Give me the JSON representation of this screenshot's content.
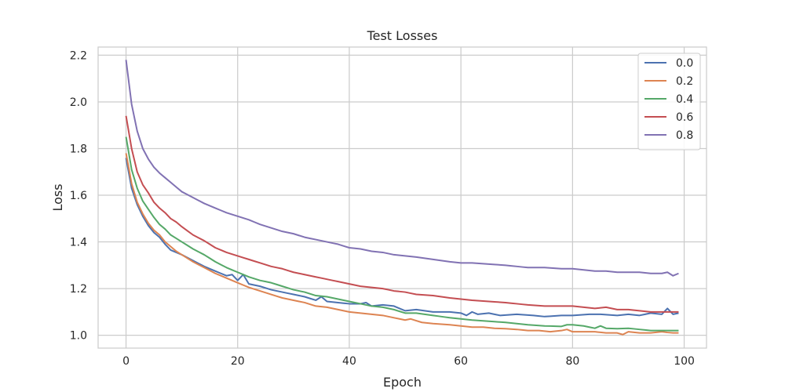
{
  "chart_data": {
    "type": "line",
    "title": "Test Losses",
    "xlabel": "Epoch",
    "ylabel": "Loss",
    "xlim": [
      -5,
      104
    ],
    "ylim": [
      0.945,
      2.235
    ],
    "xticks": [
      0,
      20,
      40,
      60,
      80,
      100
    ],
    "yticks": [
      1.0,
      1.2,
      1.4,
      1.6,
      1.8,
      2.0,
      2.2
    ],
    "grid": true,
    "legend_position": "top-right",
    "series": [
      {
        "name": "0.0",
        "color": "#4c72b0",
        "keypoints": [
          [
            0,
            1.76
          ],
          [
            1,
            1.63
          ],
          [
            2,
            1.56
          ],
          [
            3,
            1.51
          ],
          [
            4,
            1.47
          ],
          [
            5,
            1.44
          ],
          [
            6,
            1.42
          ],
          [
            7,
            1.39
          ],
          [
            8,
            1.365
          ],
          [
            9,
            1.355
          ],
          [
            10,
            1.345
          ],
          [
            12,
            1.32
          ],
          [
            14,
            1.295
          ],
          [
            16,
            1.275
          ],
          [
            18,
            1.255
          ],
          [
            19,
            1.26
          ],
          [
            20,
            1.235
          ],
          [
            21,
            1.26
          ],
          [
            22,
            1.22
          ],
          [
            24,
            1.21
          ],
          [
            26,
            1.195
          ],
          [
            28,
            1.185
          ],
          [
            30,
            1.175
          ],
          [
            32,
            1.165
          ],
          [
            34,
            1.15
          ],
          [
            35,
            1.165
          ],
          [
            36,
            1.145
          ],
          [
            38,
            1.14
          ],
          [
            40,
            1.135
          ],
          [
            42,
            1.135
          ],
          [
            43,
            1.14
          ],
          [
            44,
            1.125
          ],
          [
            46,
            1.13
          ],
          [
            48,
            1.125
          ],
          [
            50,
            1.105
          ],
          [
            52,
            1.11
          ],
          [
            55,
            1.1
          ],
          [
            58,
            1.1
          ],
          [
            60,
            1.095
          ],
          [
            61,
            1.085
          ],
          [
            62,
            1.1
          ],
          [
            63,
            1.09
          ],
          [
            65,
            1.095
          ],
          [
            67,
            1.085
          ],
          [
            70,
            1.09
          ],
          [
            73,
            1.085
          ],
          [
            75,
            1.08
          ],
          [
            78,
            1.085
          ],
          [
            80,
            1.085
          ],
          [
            83,
            1.09
          ],
          [
            85,
            1.09
          ],
          [
            88,
            1.085
          ],
          [
            90,
            1.09
          ],
          [
            92,
            1.085
          ],
          [
            94,
            1.095
          ],
          [
            96,
            1.09
          ],
          [
            97,
            1.115
          ],
          [
            98,
            1.09
          ],
          [
            99,
            1.095
          ]
        ]
      },
      {
        "name": "0.2",
        "color": "#dd8452",
        "keypoints": [
          [
            0,
            1.78
          ],
          [
            1,
            1.65
          ],
          [
            2,
            1.57
          ],
          [
            3,
            1.52
          ],
          [
            4,
            1.48
          ],
          [
            5,
            1.45
          ],
          [
            6,
            1.43
          ],
          [
            7,
            1.4
          ],
          [
            8,
            1.38
          ],
          [
            9,
            1.36
          ],
          [
            10,
            1.345
          ],
          [
            12,
            1.315
          ],
          [
            14,
            1.29
          ],
          [
            16,
            1.265
          ],
          [
            18,
            1.245
          ],
          [
            20,
            1.225
          ],
          [
            22,
            1.205
          ],
          [
            24,
            1.19
          ],
          [
            26,
            1.175
          ],
          [
            28,
            1.16
          ],
          [
            30,
            1.15
          ],
          [
            32,
            1.14
          ],
          [
            34,
            1.125
          ],
          [
            36,
            1.12
          ],
          [
            38,
            1.11
          ],
          [
            40,
            1.1
          ],
          [
            42,
            1.095
          ],
          [
            44,
            1.09
          ],
          [
            46,
            1.085
          ],
          [
            48,
            1.075
          ],
          [
            50,
            1.065
          ],
          [
            51,
            1.07
          ],
          [
            53,
            1.055
          ],
          [
            55,
            1.05
          ],
          [
            58,
            1.045
          ],
          [
            60,
            1.04
          ],
          [
            62,
            1.035
          ],
          [
            64,
            1.035
          ],
          [
            66,
            1.03
          ],
          [
            68,
            1.028
          ],
          [
            70,
            1.025
          ],
          [
            72,
            1.02
          ],
          [
            74,
            1.02
          ],
          [
            76,
            1.015
          ],
          [
            78,
            1.02
          ],
          [
            79,
            1.025
          ],
          [
            80,
            1.015
          ],
          [
            82,
            1.015
          ],
          [
            84,
            1.015
          ],
          [
            86,
            1.01
          ],
          [
            88,
            1.01
          ],
          [
            89,
            1.003
          ],
          [
            90,
            1.015
          ],
          [
            92,
            1.01
          ],
          [
            94,
            1.01
          ],
          [
            96,
            1.015
          ],
          [
            97,
            1.012
          ],
          [
            98,
            1.01
          ],
          [
            99,
            1.01
          ]
        ]
      },
      {
        "name": "0.4",
        "color": "#55a868",
        "keypoints": [
          [
            0,
            1.85
          ],
          [
            1,
            1.71
          ],
          [
            2,
            1.63
          ],
          [
            3,
            1.575
          ],
          [
            4,
            1.54
          ],
          [
            5,
            1.505
          ],
          [
            6,
            1.475
          ],
          [
            7,
            1.455
          ],
          [
            8,
            1.43
          ],
          [
            9,
            1.415
          ],
          [
            10,
            1.4
          ],
          [
            12,
            1.37
          ],
          [
            14,
            1.345
          ],
          [
            16,
            1.315
          ],
          [
            18,
            1.29
          ],
          [
            20,
            1.27
          ],
          [
            22,
            1.25
          ],
          [
            24,
            1.235
          ],
          [
            26,
            1.225
          ],
          [
            28,
            1.21
          ],
          [
            30,
            1.195
          ],
          [
            32,
            1.185
          ],
          [
            34,
            1.17
          ],
          [
            36,
            1.165
          ],
          [
            38,
            1.155
          ],
          [
            40,
            1.145
          ],
          [
            42,
            1.135
          ],
          [
            44,
            1.125
          ],
          [
            46,
            1.12
          ],
          [
            48,
            1.11
          ],
          [
            50,
            1.095
          ],
          [
            52,
            1.095
          ],
          [
            55,
            1.085
          ],
          [
            58,
            1.075
          ],
          [
            60,
            1.07
          ],
          [
            62,
            1.065
          ],
          [
            65,
            1.06
          ],
          [
            68,
            1.055
          ],
          [
            70,
            1.05
          ],
          [
            72,
            1.045
          ],
          [
            75,
            1.04
          ],
          [
            78,
            1.038
          ],
          [
            79,
            1.045
          ],
          [
            80,
            1.045
          ],
          [
            82,
            1.04
          ],
          [
            84,
            1.03
          ],
          [
            85,
            1.04
          ],
          [
            86,
            1.03
          ],
          [
            88,
            1.028
          ],
          [
            90,
            1.03
          ],
          [
            92,
            1.025
          ],
          [
            94,
            1.02
          ],
          [
            96,
            1.02
          ],
          [
            98,
            1.02
          ],
          [
            99,
            1.02
          ]
        ]
      },
      {
        "name": "0.6",
        "color": "#c44e52",
        "keypoints": [
          [
            0,
            1.94
          ],
          [
            1,
            1.8
          ],
          [
            2,
            1.7
          ],
          [
            3,
            1.645
          ],
          [
            4,
            1.61
          ],
          [
            5,
            1.57
          ],
          [
            6,
            1.545
          ],
          [
            7,
            1.525
          ],
          [
            8,
            1.5
          ],
          [
            9,
            1.485
          ],
          [
            10,
            1.465
          ],
          [
            12,
            1.43
          ],
          [
            14,
            1.405
          ],
          [
            16,
            1.375
          ],
          [
            18,
            1.355
          ],
          [
            20,
            1.34
          ],
          [
            22,
            1.325
          ],
          [
            24,
            1.31
          ],
          [
            26,
            1.295
          ],
          [
            28,
            1.285
          ],
          [
            30,
            1.27
          ],
          [
            32,
            1.26
          ],
          [
            34,
            1.25
          ],
          [
            36,
            1.24
          ],
          [
            38,
            1.23
          ],
          [
            40,
            1.22
          ],
          [
            42,
            1.21
          ],
          [
            44,
            1.205
          ],
          [
            46,
            1.2
          ],
          [
            48,
            1.19
          ],
          [
            50,
            1.185
          ],
          [
            52,
            1.175
          ],
          [
            55,
            1.17
          ],
          [
            58,
            1.16
          ],
          [
            60,
            1.155
          ],
          [
            62,
            1.15
          ],
          [
            65,
            1.145
          ],
          [
            68,
            1.14
          ],
          [
            70,
            1.135
          ],
          [
            72,
            1.13
          ],
          [
            75,
            1.125
          ],
          [
            78,
            1.125
          ],
          [
            80,
            1.125
          ],
          [
            82,
            1.12
          ],
          [
            84,
            1.115
          ],
          [
            86,
            1.12
          ],
          [
            88,
            1.11
          ],
          [
            90,
            1.11
          ],
          [
            92,
            1.105
          ],
          [
            94,
            1.1
          ],
          [
            96,
            1.1
          ],
          [
            98,
            1.1
          ],
          [
            99,
            1.1
          ]
        ]
      },
      {
        "name": "0.8",
        "color": "#8172b3",
        "keypoints": [
          [
            0,
            2.18
          ],
          [
            1,
            1.99
          ],
          [
            2,
            1.875
          ],
          [
            3,
            1.8
          ],
          [
            4,
            1.755
          ],
          [
            5,
            1.72
          ],
          [
            6,
            1.695
          ],
          [
            7,
            1.675
          ],
          [
            8,
            1.655
          ],
          [
            9,
            1.635
          ],
          [
            10,
            1.615
          ],
          [
            12,
            1.59
          ],
          [
            14,
            1.565
          ],
          [
            16,
            1.545
          ],
          [
            18,
            1.525
          ],
          [
            20,
            1.51
          ],
          [
            22,
            1.495
          ],
          [
            24,
            1.475
          ],
          [
            26,
            1.46
          ],
          [
            28,
            1.445
          ],
          [
            30,
            1.435
          ],
          [
            32,
            1.42
          ],
          [
            34,
            1.41
          ],
          [
            36,
            1.4
          ],
          [
            38,
            1.39
          ],
          [
            40,
            1.375
          ],
          [
            42,
            1.37
          ],
          [
            44,
            1.36
          ],
          [
            46,
            1.355
          ],
          [
            48,
            1.345
          ],
          [
            50,
            1.34
          ],
          [
            52,
            1.335
          ],
          [
            55,
            1.325
          ],
          [
            58,
            1.315
          ],
          [
            60,
            1.31
          ],
          [
            62,
            1.31
          ],
          [
            65,
            1.305
          ],
          [
            68,
            1.3
          ],
          [
            70,
            1.295
          ],
          [
            72,
            1.29
          ],
          [
            75,
            1.29
          ],
          [
            78,
            1.285
          ],
          [
            80,
            1.285
          ],
          [
            82,
            1.28
          ],
          [
            84,
            1.275
          ],
          [
            86,
            1.275
          ],
          [
            88,
            1.27
          ],
          [
            90,
            1.27
          ],
          [
            92,
            1.27
          ],
          [
            94,
            1.265
          ],
          [
            96,
            1.265
          ],
          [
            97,
            1.27
          ],
          [
            98,
            1.255
          ],
          [
            99,
            1.265
          ]
        ]
      }
    ]
  }
}
